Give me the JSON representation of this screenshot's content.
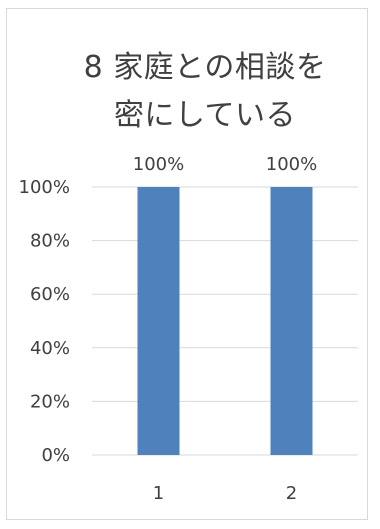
{
  "chart_data": {
    "type": "bar",
    "title": "8 家庭との相談を密にしている",
    "categories": [
      "1",
      "2"
    ],
    "values": [
      1.0,
      1.0
    ],
    "data_labels": [
      "100%",
      "100%"
    ],
    "y_ticks": [
      "0%",
      "20%",
      "40%",
      "60%",
      "80%",
      "100%"
    ],
    "ylim": [
      0,
      1
    ],
    "xlabel": "",
    "ylabel": "",
    "grid": true,
    "legend": "none",
    "bar_color": "#4f81bd",
    "grid_color": "#d9d9d9"
  }
}
